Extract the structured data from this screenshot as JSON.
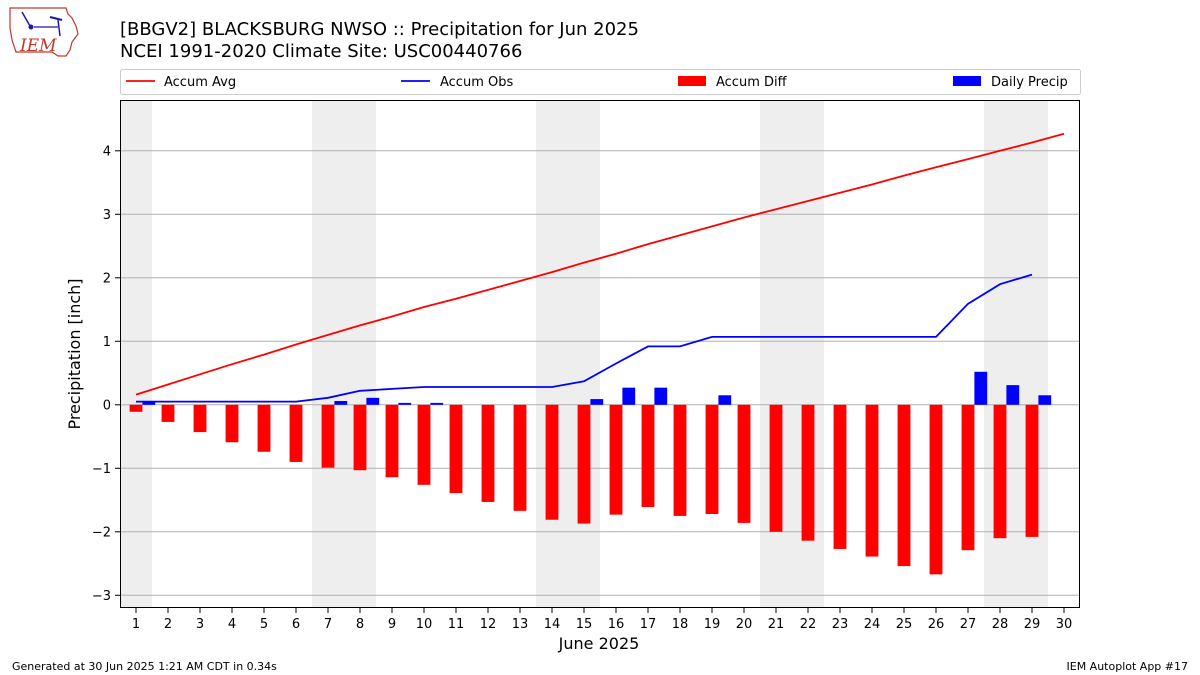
{
  "title_line1": "[BBGV2] BLACKSBURG NWSO :: Precipitation for Jun 2025",
  "title_line2": "NCEI 1991-2020 Climate Site: USC00440766",
  "logo_text": "IEM",
  "footer_left": "Generated at 30 Jun 2025 1:21 AM CDT in 0.34s",
  "footer_right": "IEM Autoplot App #17",
  "colors": {
    "accum_avg": "#ff0000",
    "accum_obs": "#0000ff",
    "accum_diff": "#ff0000",
    "daily_precip": "#0000ff",
    "weekend_shade": "#eeeeee",
    "grid": "#b0b0b0"
  },
  "chart_data": {
    "type": "bar",
    "xlabel": "June 2025",
    "ylabel": "Precipitation [inch]",
    "xlim": [
      0.5,
      30.5
    ],
    "ylim": [
      -3.2,
      4.8
    ],
    "x_ticks": [
      1,
      2,
      3,
      4,
      5,
      6,
      7,
      8,
      9,
      10,
      11,
      12,
      13,
      14,
      15,
      16,
      17,
      18,
      19,
      20,
      21,
      22,
      23,
      24,
      25,
      26,
      27,
      28,
      29,
      30
    ],
    "y_ticks": [
      -3,
      -2,
      -1,
      0,
      1,
      2,
      3,
      4
    ],
    "y_tick_labels": [
      "−3",
      "−2",
      "−1",
      "0",
      "1",
      "2",
      "3",
      "4"
    ],
    "grid": "horizontal",
    "legend_placement": "top (above plot)",
    "weekend_days": [
      1,
      7,
      8,
      14,
      15,
      21,
      22,
      28,
      29
    ],
    "legend": [
      "Accum Avg",
      "Accum Obs",
      "Accum Diff",
      "Daily Precip"
    ],
    "series": [
      {
        "name": "Accum Avg",
        "kind": "line",
        "days": [
          1,
          2,
          3,
          4,
          5,
          6,
          7,
          8,
          9,
          10,
          11,
          12,
          13,
          14,
          15,
          16,
          17,
          18,
          19,
          20,
          21,
          22,
          23,
          24,
          25,
          26,
          27,
          28,
          29,
          30
        ],
        "values": [
          0.16,
          0.32,
          0.48,
          0.64,
          0.79,
          0.95,
          1.1,
          1.25,
          1.39,
          1.54,
          1.67,
          1.81,
          1.95,
          2.09,
          2.24,
          2.38,
          2.53,
          2.67,
          2.81,
          2.95,
          3.08,
          3.21,
          3.34,
          3.47,
          3.61,
          3.74,
          3.87,
          4.0,
          4.13,
          4.27
        ]
      },
      {
        "name": "Accum Obs",
        "kind": "line",
        "days": [
          1,
          2,
          3,
          4,
          5,
          6,
          7,
          8,
          9,
          10,
          11,
          12,
          13,
          14,
          15,
          16,
          17,
          18,
          19,
          20,
          21,
          22,
          23,
          24,
          25,
          26,
          27,
          28,
          29
        ],
        "values": [
          0.05,
          0.05,
          0.05,
          0.05,
          0.05,
          0.05,
          0.11,
          0.22,
          0.25,
          0.28,
          0.28,
          0.28,
          0.28,
          0.28,
          0.37,
          0.65,
          0.92,
          0.92,
          1.07,
          1.07,
          1.07,
          1.07,
          1.07,
          1.07,
          1.07,
          1.07,
          1.59,
          1.9,
          2.05
        ]
      },
      {
        "name": "Accum Diff",
        "kind": "bar",
        "days": [
          1,
          2,
          3,
          4,
          5,
          6,
          7,
          8,
          9,
          10,
          11,
          12,
          13,
          14,
          15,
          16,
          17,
          18,
          19,
          20,
          21,
          22,
          23,
          24,
          25,
          26,
          27,
          28,
          29
        ],
        "values": [
          -0.11,
          -0.27,
          -0.43,
          -0.59,
          -0.74,
          -0.9,
          -0.99,
          -1.03,
          -1.14,
          -1.26,
          -1.39,
          -1.53,
          -1.67,
          -1.81,
          -1.87,
          -1.73,
          -1.61,
          -1.75,
          -1.72,
          -1.86,
          -2.0,
          -2.14,
          -2.27,
          -2.39,
          -2.54,
          -2.67,
          -2.29,
          -2.1,
          -2.08
        ]
      },
      {
        "name": "Daily Precip",
        "kind": "bar",
        "days": [
          1,
          7,
          8,
          9,
          10,
          15,
          16,
          17,
          19,
          27,
          28,
          29
        ],
        "values": [
          0.05,
          0.06,
          0.11,
          0.03,
          0.03,
          0.09,
          0.27,
          0.27,
          0.15,
          0.52,
          0.31,
          0.15
        ]
      }
    ]
  }
}
